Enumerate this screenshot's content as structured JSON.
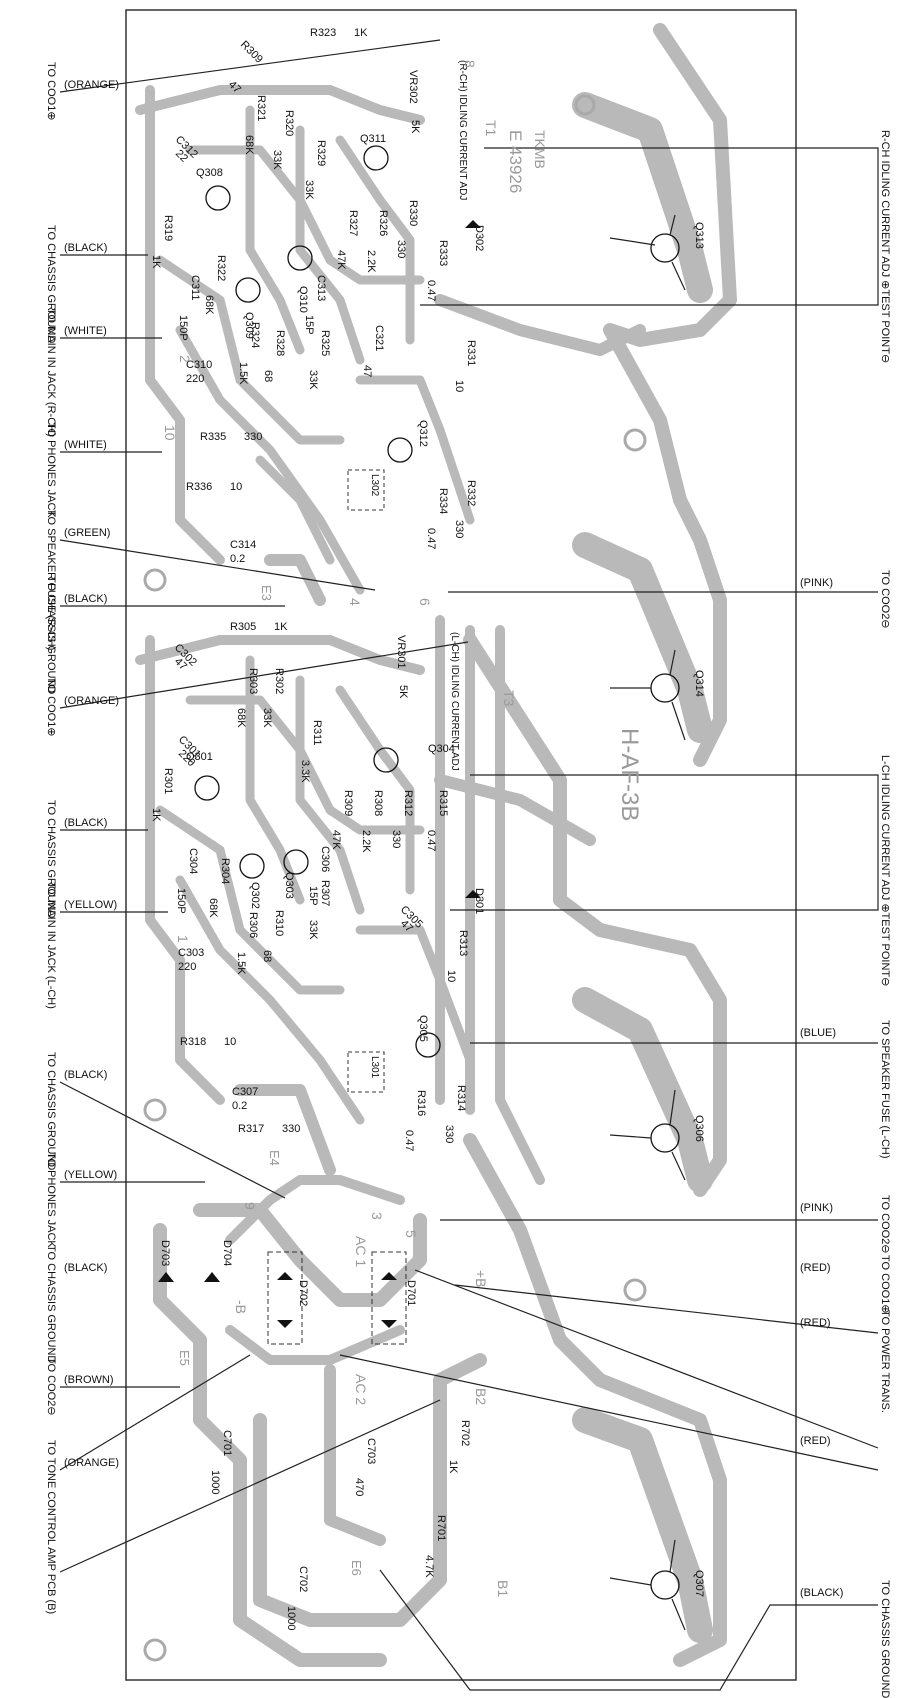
{
  "board": {
    "watermark_top": "TKMB",
    "code_top": "E 43926",
    "board_name": "H-AF-3B"
  },
  "left_labels": [
    {
      "dest": "TO COO1⊕",
      "color": "(ORANGE)"
    },
    {
      "dest": "TO CHASSIS GROUND",
      "color": "(BLACK)"
    },
    {
      "dest": "TO MAIN IN JACK (R-CH)",
      "color": "(WHITE)"
    },
    {
      "dest": "TO PHONES JACK",
      "color": "(WHITE)"
    },
    {
      "dest": "TO SPEAKER FUSE (R-CH)",
      "color": "(GREEN)"
    },
    {
      "dest": "TO CHASSIS GROUND",
      "color": "(BLACK)"
    },
    {
      "dest": "TO COO1⊕",
      "color": "(ORANGE)"
    },
    {
      "dest": "TO CHASSIS GROUND",
      "color": "(BLACK)"
    },
    {
      "dest": "TO MAIN IN JACK (L-CH)",
      "color": "(YELLOW)"
    },
    {
      "dest": "TO CHASSIS GROUND",
      "color": "(BLACK)"
    },
    {
      "dest": "TO PHONES JACK",
      "color": "(YELLOW)"
    },
    {
      "dest": "TO CHASSIS GROUND",
      "color": "(BLACK)"
    },
    {
      "dest": "TO COO2⊖",
      "color": "(BROWN)"
    },
    {
      "dest": "TO TONE CONTROL AMP PCB (B)",
      "color": "(ORANGE)"
    }
  ],
  "right_labels": [
    {
      "dest": "R-CH IDLING CURRENT ADJ ⊕TEST POINT⊖",
      "color": ""
    },
    {
      "dest": "TO COO2⊖",
      "color": "(PINK)"
    },
    {
      "dest": "L-CH IDLING CURRENT ADJ ⊕TEST POINT⊖",
      "color": ""
    },
    {
      "dest": "TO SPEAKER FUSE (L-CH)",
      "color": "(BLUE)"
    },
    {
      "dest": "TO COO2⊖",
      "color": "(PINK)"
    },
    {
      "dest": "TO COO1⊕",
      "color": "(RED)"
    },
    {
      "dest": "TO POWER TRANS.",
      "color": "(RED)"
    },
    {
      "dest": "",
      "color": "(RED)"
    },
    {
      "dest": "TO CHASSIS GROUND",
      "color": "(BLACK)"
    }
  ],
  "resistors": [
    {
      "ref": "R323",
      "val": "1K"
    },
    {
      "ref": "R309",
      "val": "47"
    },
    {
      "ref": "R321",
      "val": "68K"
    },
    {
      "ref": "R320",
      "val": "33K"
    },
    {
      "ref": "R329",
      "val": "33K"
    },
    {
      "ref": "R327",
      "val": "47K"
    },
    {
      "ref": "R326",
      "val": "2.2K"
    },
    {
      "ref": "R330",
      "val": "330"
    },
    {
      "ref": "R333",
      "val": "0.47"
    },
    {
      "ref": "R319",
      "val": "1K"
    },
    {
      "ref": "R322",
      "val": "68K"
    },
    {
      "ref": "R324",
      "val": "1.5K"
    },
    {
      "ref": "R328",
      "val": "68"
    },
    {
      "ref": "R325",
      "val": "33K"
    },
    {
      "ref": "R331",
      "val": "10"
    },
    {
      "ref": "R335",
      "val": "330"
    },
    {
      "ref": "R336",
      "val": "10"
    },
    {
      "ref": "R334",
      "val": "0.47"
    },
    {
      "ref": "R332",
      "val": "330"
    },
    {
      "ref": "R305",
      "val": "1K"
    },
    {
      "ref": "R303",
      "val": "68K"
    },
    {
      "ref": "R302",
      "val": "33K"
    },
    {
      "ref": "R311",
      "val": "3.3K"
    },
    {
      "ref": "R309",
      "val": "47K"
    },
    {
      "ref": "R308",
      "val": "2.2K"
    },
    {
      "ref": "R312",
      "val": "330"
    },
    {
      "ref": "R315",
      "val": "0.47"
    },
    {
      "ref": "R301",
      "val": "1K"
    },
    {
      "ref": "R304",
      "val": "68K"
    },
    {
      "ref": "R306",
      "val": "1.5K"
    },
    {
      "ref": "R310",
      "val": "68"
    },
    {
      "ref": "R307",
      "val": "33K"
    },
    {
      "ref": "R313",
      "val": "10"
    },
    {
      "ref": "R318",
      "val": "10"
    },
    {
      "ref": "R317",
      "val": "330"
    },
    {
      "ref": "R316",
      "val": "0.47"
    },
    {
      "ref": "R314",
      "val": "330"
    },
    {
      "ref": "R702",
      "val": "1K"
    },
    {
      "ref": "R701",
      "val": "4.7K"
    }
  ],
  "capacitors": [
    {
      "ref": "C312",
      "val": "22"
    },
    {
      "ref": "C311",
      "val": "150P"
    },
    {
      "ref": "C313",
      "val": "15P"
    },
    {
      "ref": "C321",
      "val": "47"
    },
    {
      "ref": "C310",
      "val": "220"
    },
    {
      "ref": "C314",
      "val": "0.2"
    },
    {
      "ref": "C302",
      "val": "47"
    },
    {
      "ref": "C301",
      "val": "220"
    },
    {
      "ref": "C304",
      "val": "150P"
    },
    {
      "ref": "C306",
      "val": "15P"
    },
    {
      "ref": "C305",
      "val": "47"
    },
    {
      "ref": "C303",
      "val": "220"
    },
    {
      "ref": "C307",
      "val": "0.2"
    },
    {
      "ref": "C701",
      "val": "1000"
    },
    {
      "ref": "C703",
      "val": "470"
    },
    {
      "ref": "C702",
      "val": "1000"
    }
  ],
  "transistors": [
    "Q308",
    "Q309",
    "Q310",
    "Q311",
    "Q312",
    "Q313",
    "Q301",
    "Q302",
    "Q303",
    "Q304",
    "Q305",
    "Q314",
    "Q306",
    "Q307"
  ],
  "diodes": [
    "D302",
    "D301",
    "D703",
    "D704",
    "D702",
    "D701"
  ],
  "misc": {
    "vr_r": "VR302",
    "vr_r_val": "5K",
    "vr_r_note": "(R-CH) IDLING CURRENT ADJ",
    "vr_l": "VR301",
    "vr_l_val": "5K",
    "vr_l_note": "(L-CH) IDLING CURRENT ADJ",
    "l302": "L302",
    "l301": "L301",
    "t1": "T1",
    "t3": "T3",
    "e3": "E3",
    "e4": "E4",
    "e5": "E5",
    "e6": "E6",
    "ac1": "AC 1",
    "ac2": "AC 2",
    "b1": "B1",
    "b2": "B2",
    "plusb": "+B",
    "minusb": "-B",
    "nums": [
      "8",
      "2",
      "10",
      "4",
      "6",
      "1",
      "3",
      "5",
      "9"
    ]
  }
}
